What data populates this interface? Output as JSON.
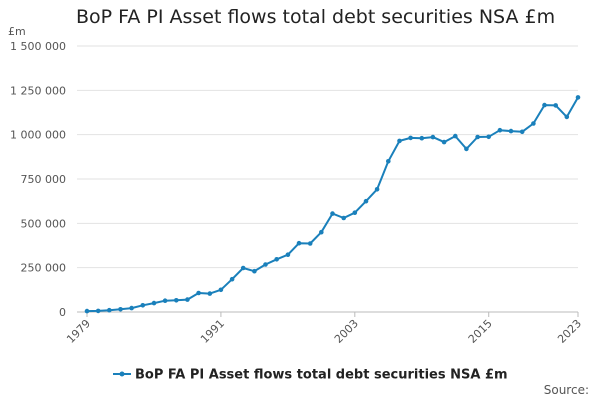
{
  "chart_data": {
    "type": "line",
    "title": "BoP FA PI Asset flows total debt securities NSA £m",
    "ylabel": "£m",
    "xlabel": "",
    "ylim": [
      0,
      1500000
    ],
    "xlim": [
      1979,
      2023
    ],
    "y_ticks": [
      0,
      250000,
      500000,
      750000,
      1000000,
      1250000,
      1500000
    ],
    "y_tick_labels": [
      "0",
      "250 000",
      "500 000",
      "750 000",
      "1 000 000",
      "1 250 000",
      "1 500 000"
    ],
    "x_ticks": [
      1979,
      1991,
      2003,
      2015,
      2023
    ],
    "x_tick_labels": [
      "1979",
      "1991",
      "2003",
      "2015",
      "2023"
    ],
    "grid": true,
    "legend_position": "bottom",
    "color": "#1a80bb",
    "series": [
      {
        "name": "BoP FA PI Asset flows total debt securities NSA £m",
        "x": [
          1979,
          1980,
          1981,
          1982,
          1983,
          1984,
          1985,
          1986,
          1987,
          1988,
          1989,
          1990,
          1991,
          1992,
          1993,
          1994,
          1995,
          1996,
          1997,
          1998,
          1999,
          2000,
          2001,
          2002,
          2003,
          2004,
          2005,
          2006,
          2007,
          2008,
          2009,
          2010,
          2011,
          2012,
          2013,
          2014,
          2015,
          2016,
          2017,
          2018,
          2019,
          2020,
          2021,
          2022,
          2023
        ],
        "values": [
          5000,
          6000,
          10000,
          15000,
          22000,
          38000,
          50000,
          64000,
          66000,
          70000,
          107000,
          104000,
          125000,
          185000,
          248000,
          230000,
          268000,
          297000,
          323000,
          388000,
          386000,
          450000,
          555000,
          530000,
          560000,
          625000,
          692000,
          850000,
          965000,
          982000,
          980000,
          986000,
          958000,
          992000,
          920000,
          987000,
          988000,
          1025000,
          1020000,
          1016000,
          1063000,
          1167000,
          1165000,
          1100000,
          1210000
        ]
      }
    ]
  },
  "legend": {
    "label": "BoP FA PI Asset flows total debt securities NSA £m"
  },
  "source": "Source:"
}
